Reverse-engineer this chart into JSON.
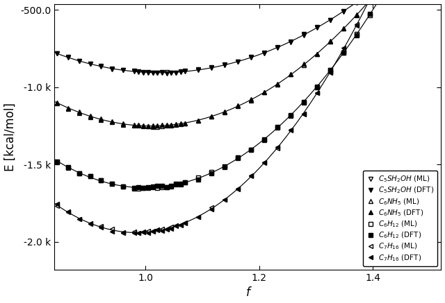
{
  "xlabel": "f",
  "ylabel": "E [kcal/mol]",
  "xlim": [
    0.84,
    1.52
  ],
  "ylim": [
    -2180,
    -460
  ],
  "xticks": [
    1.0,
    1.2,
    1.4
  ],
  "yticks": [
    -500,
    -1000,
    -1500,
    -2000
  ],
  "ytick_labels": [
    "-500.0",
    "-1.0 k",
    "-1.5 k",
    "-2.0 k"
  ],
  "molecules": [
    {
      "label_ml": "$C_5SH_2OH$ (ML)",
      "label_dft": "$C_5SH_2OH$ (DFT)",
      "marker_ml": "v",
      "marker_dft": "v",
      "E_min": -905,
      "f_min": 1.025,
      "k": 3800
    },
    {
      "label_ml": "$C_6NH_5$ (ML)",
      "label_dft": "$C_6NH_5$ (DFT)",
      "marker_ml": "^",
      "marker_dft": "^",
      "E_min": -1250,
      "f_min": 1.01,
      "k": 5500
    },
    {
      "label_ml": "$C_6H_{12}$ (ML)",
      "label_dft": "$C_6H_{12}$ (DFT)",
      "marker_ml": "s",
      "marker_dft": "s",
      "E_min": -1650,
      "f_min": 1.0,
      "k": 7200
    },
    {
      "label_ml": "$C_7H_{16}$ (ML)",
      "label_dft": "$C_7H_{16}$ (DFT)",
      "marker_ml": "<",
      "marker_dft": "<",
      "E_min": -1940,
      "f_min": 0.985,
      "k": 9000
    }
  ],
  "bg_color": "#ffffff",
  "marker_size": 4.5,
  "legend_fontsize": 7.5,
  "axis_fontsize": 12,
  "tick_fontsize": 10
}
